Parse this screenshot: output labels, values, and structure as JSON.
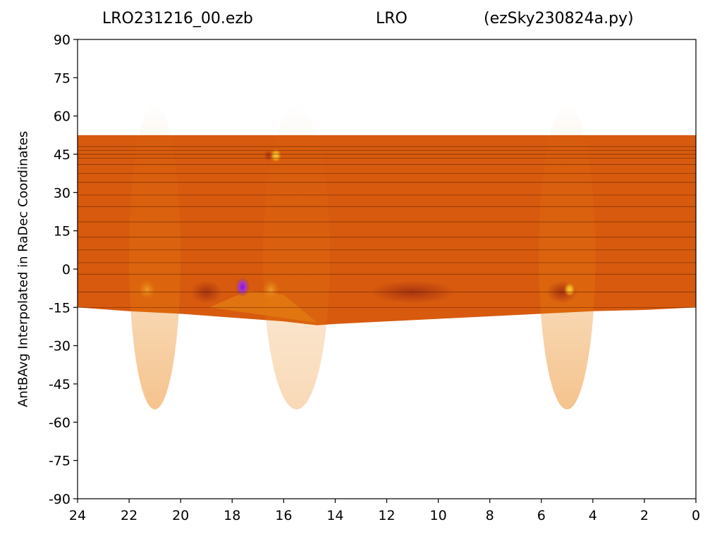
{
  "chart_data": {
    "type": "heatmap",
    "title_parts": [
      "LRO231216_00.ezb",
      "LRO",
      "(ezSky230824a.py)"
    ],
    "xlabel": "",
    "ylabel": "AntBAvg Interpolated in RaDec Coordinates",
    "xlim": [
      24,
      0
    ],
    "ylim": [
      -90,
      90
    ],
    "x_ticks": [
      24,
      22,
      20,
      18,
      16,
      14,
      12,
      10,
      8,
      6,
      4,
      2,
      0
    ],
    "y_ticks": [
      90,
      75,
      60,
      45,
      30,
      15,
      0,
      -15,
      -30,
      -45,
      -60,
      -75,
      -90
    ],
    "data_dec_range": [
      -22,
      52.5
    ],
    "scan_declinations": [
      48,
      46.5,
      45,
      43.5,
      41,
      37.5,
      34,
      29,
      24.5,
      18.5,
      12.5,
      7.5,
      2.5,
      -2,
      -9,
      -15
    ],
    "bottom_edge_profile": [
      [
        24,
        -15
      ],
      [
        22,
        -16.5
      ],
      [
        20,
        -17.5
      ],
      [
        18,
        -19
      ],
      [
        16,
        -20.5
      ],
      [
        14.7,
        -22
      ],
      [
        14,
        -21.5
      ],
      [
        12,
        -20.5
      ],
      [
        10,
        -19.5
      ],
      [
        8,
        -18.5
      ],
      [
        6,
        -17.5
      ],
      [
        4,
        -16.5
      ],
      [
        2,
        -16
      ],
      [
        0,
        -15
      ]
    ],
    "colors": {
      "background": "#d75a0e",
      "warm": "#e9800c",
      "dark": "#a93410",
      "hot": "#f6c020",
      "min": "#8a10e8"
    },
    "features": [
      {
        "ra": 16.3,
        "dec": 44.5,
        "kind": "hot"
      },
      {
        "ra": 16.6,
        "dec": 44.5,
        "kind": "dark"
      },
      {
        "ra": 17.6,
        "dec": -7,
        "kind": "min"
      },
      {
        "ra": 19.0,
        "dec": -9,
        "kind": "dark"
      },
      {
        "ra": 11.0,
        "dec": -9,
        "kind": "dark"
      },
      {
        "ra": 5.2,
        "dec": -9,
        "kind": "dark"
      },
      {
        "ra": 4.9,
        "dec": -8,
        "kind": "hot"
      },
      {
        "ra": 21.3,
        "dec": -8,
        "kind": "warm"
      },
      {
        "ra": 16.5,
        "dec": -8,
        "kind": "warm"
      }
    ]
  }
}
